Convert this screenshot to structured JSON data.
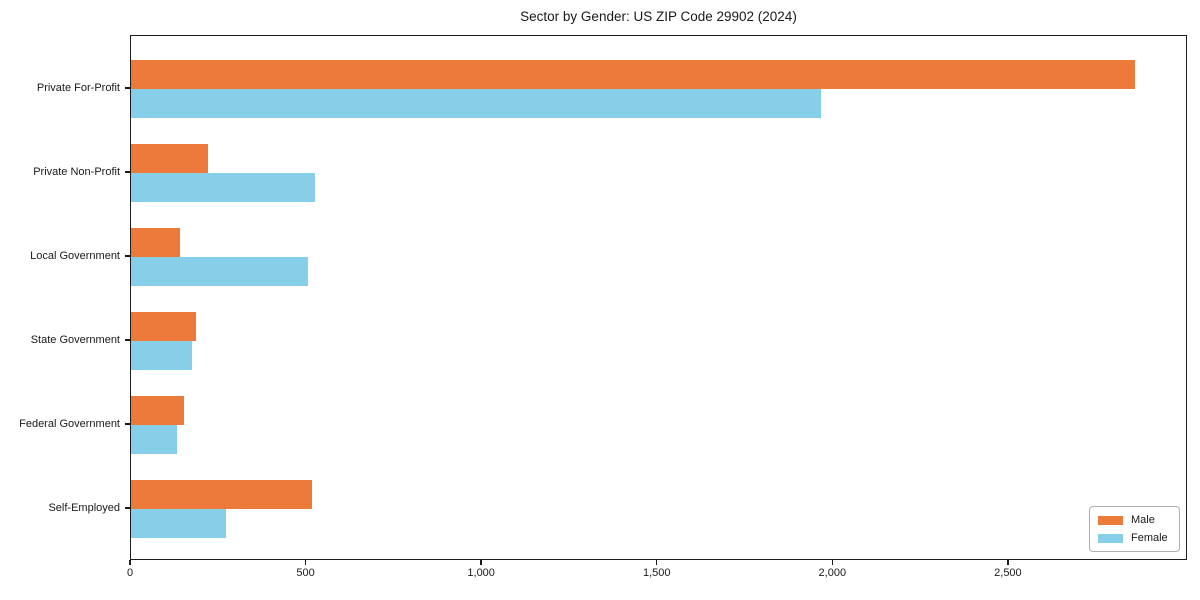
{
  "title": "Sector by Gender: US ZIP Code 29902 (2024)",
  "colors": {
    "male": "#ec7a3b",
    "female": "#87cee9",
    "spine": "#1c1c1c",
    "text": "#1a1a1a",
    "legend_border": "#b0b0b0"
  },
  "legend": {
    "position": "lower right",
    "items": [
      {
        "label": "Male",
        "color": "#ec7a3b"
      },
      {
        "label": "Female",
        "color": "#87cee9"
      }
    ]
  },
  "chart_data": {
    "type": "bar",
    "orientation": "horizontal",
    "title": "Sector by Gender: US ZIP Code 29902 (2024)",
    "categories": [
      "Private For-Profit",
      "Private Non-Profit",
      "Local Government",
      "State Government",
      "Federal Government",
      "Self-Employed"
    ],
    "series": [
      {
        "name": "Male",
        "color": "#ec7a3b",
        "values": [
          2860,
          220,
          140,
          185,
          150,
          515
        ]
      },
      {
        "name": "Female",
        "color": "#87cee9",
        "values": [
          1965,
          525,
          505,
          175,
          130,
          270
        ]
      }
    ],
    "xlabel": "",
    "ylabel": "",
    "xlim": [
      0,
      3010
    ],
    "xticks": {
      "values": [
        0,
        500,
        1000,
        1500,
        2000,
        2500
      ],
      "labels": [
        "0",
        "500",
        "1,000",
        "1,500",
        "2,000",
        "2,500"
      ]
    },
    "grid": false,
    "legend_position": "lower right"
  }
}
